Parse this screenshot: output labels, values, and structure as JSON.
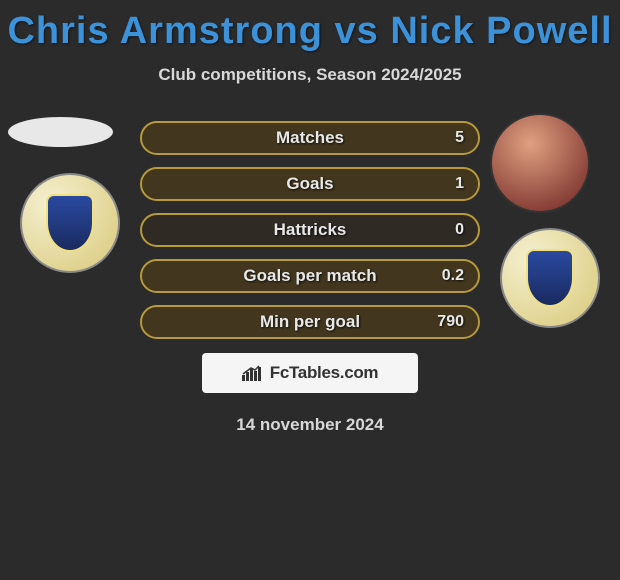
{
  "title": "Chris Armstrong vs Nick Powell",
  "subtitle": "Club competitions, Season 2024/2025",
  "colors": {
    "title_color": "#3b92d8",
    "pill_border": "#b79a3a",
    "pill_fill": "rgba(90,70,25,0.45)",
    "background": "#2b2b2b",
    "text_light": "#d8d8d8"
  },
  "stats": [
    {
      "label": "Matches",
      "value": "5",
      "fill_pct": 100
    },
    {
      "label": "Goals",
      "value": "1",
      "fill_pct": 100
    },
    {
      "label": "Hattricks",
      "value": "0",
      "fill_pct": 0
    },
    {
      "label": "Goals per match",
      "value": "0.2",
      "fill_pct": 100
    },
    {
      "label": "Min per goal",
      "value": "790",
      "fill_pct": 100
    }
  ],
  "footer": {
    "brand": "FcTables.com",
    "date": "14 november 2024"
  },
  "avatars": {
    "left_player": "chris-armstrong",
    "left_club": "stockport-county-crest",
    "right_player": "nick-powell",
    "right_club": "stockport-county-crest"
  }
}
